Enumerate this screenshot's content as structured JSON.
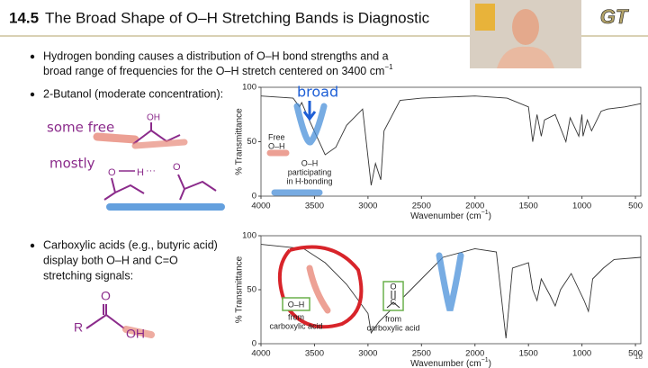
{
  "header": {
    "number": "14.5",
    "title": "The Broad Shape of O–H Stretching Bands is Diagnostic",
    "logo": "GT"
  },
  "bullets": [
    {
      "line1": "Hydrogen bonding causes a distribution of O–H bond strengths and a",
      "line2": "broad range of frequencies for the O–H stretch centered on 3400 cm",
      "sup": "−1"
    },
    {
      "line1": "2-Butanol (moderate concentration):"
    },
    {
      "line1": "Carboxylic acids (e.g., butyric acid)",
      "line2": "display both O–H and C=O",
      "line3": "stretching signals:"
    }
  ],
  "handwriting": [
    "some free",
    "mostly"
  ],
  "molecules": [
    "OH",
    "O",
    "H",
    "···",
    "O",
    "O",
    "R",
    "OH"
  ],
  "spectra": [
    {
      "type": "line",
      "xlim": [
        4000,
        450
      ],
      "ylim": [
        0,
        100
      ],
      "xticks": [
        4000,
        3500,
        3000,
        2500,
        2000,
        1500,
        1000,
        500
      ],
      "yticks": [
        0,
        50,
        100
      ],
      "xlabel": [
        "Wavenumber (cm",
        "−1",
        ")"
      ],
      "ylabel": "% Transmittance",
      "annotations": [
        "broad",
        "Free",
        "O–H",
        "O–H",
        "participating",
        "in H-bonding"
      ],
      "x": [
        4000,
        3700,
        3640,
        3620,
        3550,
        3400,
        3300,
        3200,
        3050,
        2970,
        2930,
        2880,
        2850,
        2700,
        2500,
        2000,
        1700,
        1500,
        1460,
        1420,
        1380,
        1350,
        1250,
        1150,
        1110,
        1030,
        1000,
        990,
        950,
        910,
        820,
        760,
        600,
        450
      ],
      "values": [
        92,
        90,
        82,
        86,
        70,
        38,
        45,
        65,
        80,
        10,
        30,
        15,
        60,
        88,
        90,
        92,
        90,
        82,
        50,
        75,
        55,
        70,
        75,
        50,
        72,
        55,
        75,
        55,
        70,
        60,
        78,
        80,
        82,
        85
      ]
    },
    {
      "type": "line",
      "xlim": [
        4000,
        450
      ],
      "ylim": [
        0,
        100
      ],
      "xticks": [
        4000,
        3500,
        3000,
        2500,
        2000,
        1500,
        1000,
        500
      ],
      "yticks": [
        0,
        50,
        100
      ],
      "xlabel": [
        "Wavenumber (cm",
        "−1",
        ")"
      ],
      "ylabel": "% Transmittance",
      "annotations": [
        "O–H",
        "from",
        "carboxylic acid",
        "O",
        "C",
        "from",
        "carboxylic acid"
      ],
      "x": [
        4000,
        3600,
        3400,
        3200,
        3000,
        2970,
        2900,
        2700,
        2650,
        2500,
        2300,
        2000,
        1800,
        1710,
        1650,
        1500,
        1460,
        1420,
        1380,
        1300,
        1250,
        1200,
        1100,
        980,
        940,
        900,
        800,
        700,
        450
      ],
      "values": [
        92,
        88,
        75,
        55,
        28,
        10,
        20,
        40,
        45,
        60,
        80,
        88,
        85,
        5,
        70,
        75,
        50,
        40,
        60,
        45,
        35,
        50,
        65,
        40,
        30,
        60,
        70,
        78,
        80
      ]
    }
  ],
  "footer": {
    "page": "18"
  }
}
